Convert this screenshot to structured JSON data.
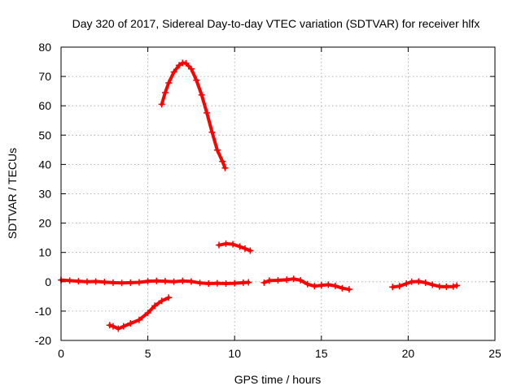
{
  "chart_data": {
    "type": "scatter",
    "title": "Day 320 of 2017, Sidereal Day-to-day VTEC variation (SDTVAR) for receiver hlfx",
    "xlabel": "GPS time / hours",
    "ylabel": "SDTVAR / TECUs",
    "xlim": [
      0,
      25
    ],
    "ylim": [
      -20,
      80
    ],
    "xticks": [
      0,
      5,
      10,
      15,
      20,
      25
    ],
    "yticks": [
      -20,
      -10,
      0,
      10,
      20,
      30,
      40,
      50,
      60,
      70,
      80
    ],
    "grid": true,
    "legend": "none",
    "marker": "plus",
    "color": "#ff0000",
    "series": [
      {
        "x": [
          0.0,
          0.5,
          1.0,
          1.5,
          2.0,
          2.5,
          3.0,
          3.5,
          4.0,
          4.5,
          5.0,
          5.5,
          6.0,
          6.5,
          7.0,
          7.5,
          8.0,
          8.5,
          9.0,
          9.5,
          10.0,
          10.5,
          10.8
        ],
        "y": [
          0.6,
          0.4,
          0.2,
          0.0,
          0.1,
          -0.1,
          -0.3,
          -0.4,
          -0.3,
          -0.2,
          0.2,
          0.3,
          0.2,
          0.0,
          0.3,
          0.1,
          -0.4,
          -0.6,
          -0.5,
          -0.6,
          -0.5,
          -0.3,
          -0.2
        ]
      },
      {
        "x": [
          11.7,
          12.0,
          12.5,
          13.0,
          13.4,
          13.8,
          14.2,
          14.6,
          15.0,
          15.4,
          15.8,
          16.2,
          16.6
        ],
        "y": [
          -0.3,
          0.4,
          0.5,
          0.7,
          1.0,
          0.5,
          -0.8,
          -1.5,
          -1.2,
          -1.0,
          -1.4,
          -2.2,
          -2.6
        ]
      },
      {
        "x": [
          19.1,
          19.5,
          19.9,
          20.2,
          20.6,
          21.0,
          21.4,
          21.8,
          22.2,
          22.6,
          22.8
        ],
        "y": [
          -1.8,
          -1.5,
          -0.6,
          0.0,
          0.1,
          -0.3,
          -1.0,
          -1.6,
          -1.7,
          -1.6,
          -1.3
        ]
      },
      {
        "x": [
          2.8,
          3.0,
          3.3,
          3.6,
          4.0,
          4.5,
          5.0,
          5.4,
          5.8,
          6.2
        ],
        "y": [
          -14.8,
          -15.2,
          -16.0,
          -15.2,
          -14.2,
          -13.0,
          -10.6,
          -8.2,
          -6.5,
          -5.4
        ]
      },
      {
        "x": [
          5.8,
          6.0,
          6.2,
          6.5,
          6.8,
          7.0,
          7.2,
          7.5,
          7.8,
          8.1,
          8.4,
          8.7,
          9.0,
          9.3,
          9.45
        ],
        "y": [
          60.5,
          64.5,
          67.8,
          71.5,
          73.8,
          74.6,
          74.5,
          72.6,
          68.7,
          63.7,
          57.6,
          51.0,
          44.9,
          41.0,
          38.8
        ]
      },
      {
        "x": [
          9.1,
          9.5,
          9.9,
          10.3,
          10.6,
          10.9
        ],
        "y": [
          12.5,
          13.0,
          12.8,
          12.0,
          11.3,
          10.6
        ]
      }
    ]
  }
}
